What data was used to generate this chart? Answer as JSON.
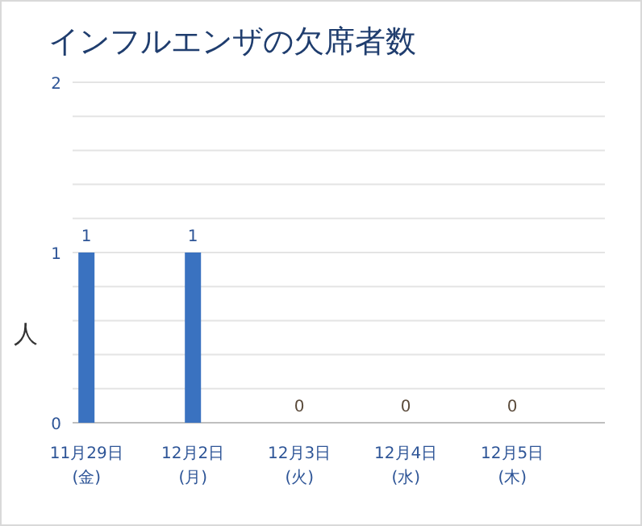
{
  "chart_data": {
    "type": "bar",
    "title": "インフルエンザの欠席者数",
    "ylabel": "人",
    "categories": [
      "11月29日\n(金)",
      "12月2日\n(月)",
      "12月3日\n(火)",
      "12月4日\n(水)",
      "12月5日\n(木)"
    ],
    "values": [
      1,
      1,
      0,
      0,
      0
    ],
    "color": "#3a72c0",
    "ylim": [
      0,
      2
    ],
    "yticks": [
      0,
      {
        "value": 0.2,
        "label": null
      },
      {
        "value": 0.4,
        "label": null
      },
      {
        "value": 0.6,
        "label": null
      },
      {
        "value": 0.8,
        "label": null
      },
      1,
      {
        "value": 1.2,
        "label": null
      },
      {
        "value": 1.4,
        "label": null
      },
      {
        "value": 1.6,
        "label": null
      },
      {
        "value": 1.8,
        "label": null
      },
      2
    ],
    "grid": "y",
    "data_labels": true
  }
}
